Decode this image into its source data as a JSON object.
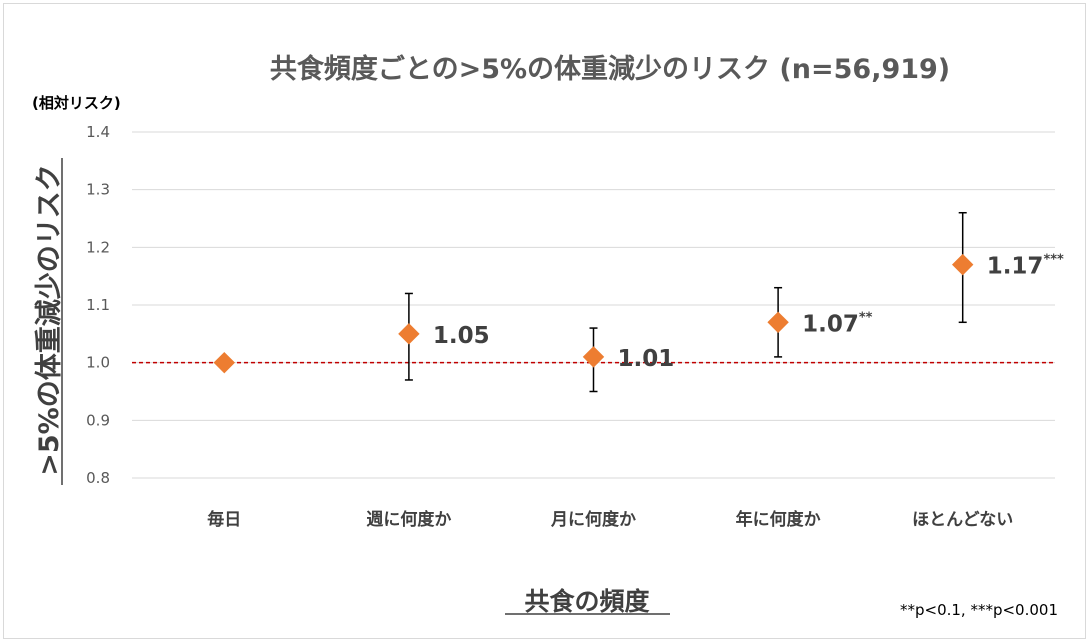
{
  "chart_data": {
    "type": "scatter",
    "title": "共食頻度ごとの>5%の体重減少のリスク (n=56,919)",
    "unit_label": "(相対リスク)",
    "ylabel": ">5%の体重減少のリスク",
    "xlabel": "共食の頻度",
    "ylim": [
      0.8,
      1.4
    ],
    "yticks": [
      "0.8",
      "0.9",
      "1.0",
      "1.1",
      "1.2",
      "1.3",
      "1.4"
    ],
    "grid": true,
    "reference_line": 1.0,
    "categories": [
      "毎日",
      "週に何度か",
      "月に何度か",
      "年に何度か",
      "ほとんどない"
    ],
    "values": [
      1.0,
      1.05,
      1.01,
      1.07,
      1.17
    ],
    "ci_low": [
      null,
      0.97,
      0.95,
      1.01,
      1.07
    ],
    "ci_high": [
      null,
      1.12,
      1.06,
      1.13,
      1.26
    ],
    "data_labels": [
      "",
      "1.05",
      "1.01",
      "1.07",
      "1.17"
    ],
    "significance": [
      "",
      "",
      "",
      "**",
      "***"
    ],
    "footnote": "**p<0.1, ***p<0.001",
    "colors": {
      "marker": "#ED7D31",
      "reference": "#C00000",
      "grid": "#D9D9D9",
      "error_bar": "#000000"
    }
  }
}
